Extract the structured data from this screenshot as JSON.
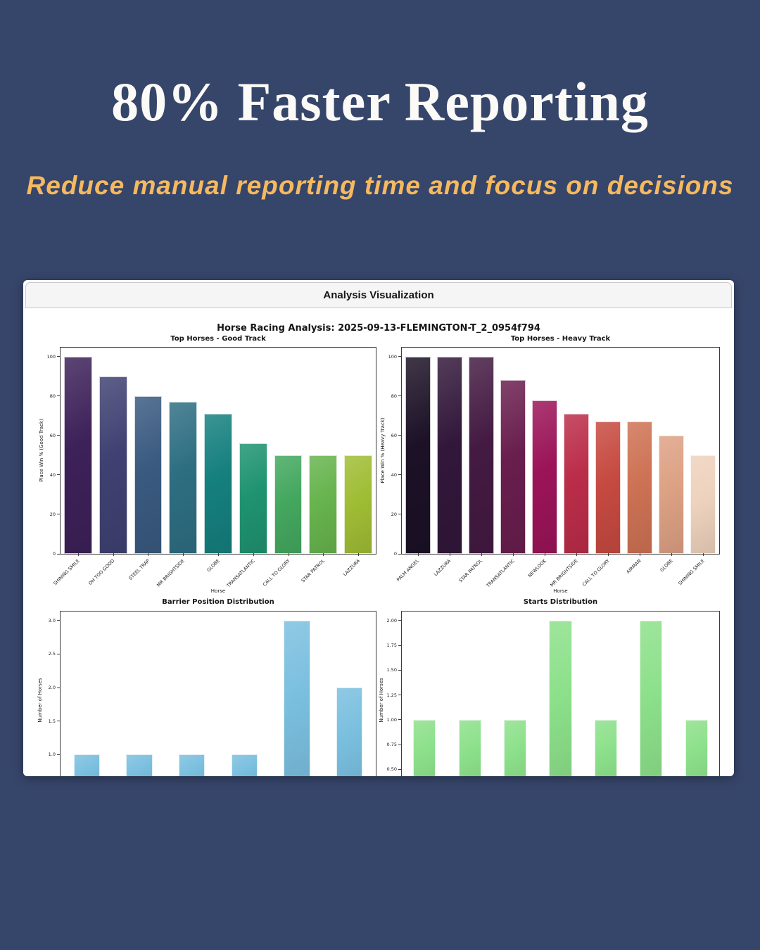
{
  "page": {
    "background_color": "#36456A",
    "heading": "80% Faster Reporting",
    "heading_color": "#FBFAF7",
    "subheading": "Reduce manual reporting time and focus on decisions",
    "subheading_color": "#F5B95F"
  },
  "window": {
    "title": "Analysis Visualization",
    "figure_title": "Horse Racing Analysis: 2025-09-13-FLEMINGTON-T_2_0954f794"
  },
  "chart_data": [
    {
      "id": "top-horses-good-track",
      "type": "bar",
      "title": "Top Horses - Good Track",
      "xlabel": "Horse",
      "ylabel": "Place Win % (Good Track)",
      "categories": [
        "SHINING SMILE",
        "OH TOO GOOD",
        "STEEL TRAP",
        "MR BRIGHTSIDE",
        "GLOBE",
        "TRANSATLANTIC",
        "CALL TO GLORY",
        "STAR PATROL",
        "LAZZURA"
      ],
      "values": [
        100,
        90,
        80,
        77,
        71,
        56,
        50,
        50,
        50
      ],
      "colors": [
        "#3D2159",
        "#3F4172",
        "#3A5A80",
        "#2E6E82",
        "#15807E",
        "#1F9371",
        "#44A85F",
        "#67B44E",
        "#A0BD35"
      ],
      "yticks": [
        "0",
        "20",
        "40",
        "60",
        "80",
        "100"
      ],
      "ylim": [
        0,
        104.6
      ],
      "grid": false,
      "legend": false
    },
    {
      "id": "top-horses-heavy-track",
      "type": "bar",
      "title": "Top Horses - Heavy Track",
      "xlabel": "Horse",
      "ylabel": "Place Win % (Heavy Track)",
      "categories": [
        "PALM ANGEL",
        "LAZZURA",
        "STAR PATROL",
        "TRANSATLANTIC",
        "NEWLOOK",
        "MR BRIGHTSIDE",
        "CALL TO GLORY",
        "AIRMAN",
        "GLOBE",
        "SHINING SMILE"
      ],
      "values": [
        100,
        100,
        100,
        88,
        78,
        71,
        67,
        67,
        60,
        50
      ],
      "colors": [
        "#1C1126",
        "#32173A",
        "#441A42",
        "#691E4E",
        "#9B1458",
        "#BB2D49",
        "#C64A41",
        "#CE7254",
        "#DDA184",
        "#EED2BD"
      ],
      "yticks": [
        "0",
        "20",
        "40",
        "60",
        "80",
        "100"
      ],
      "ylim": [
        0,
        104.6
      ],
      "grid": false,
      "legend": false
    },
    {
      "id": "barrier-position-distribution",
      "type": "bar",
      "title": "Barrier Position Distribution",
      "xlabel": "",
      "ylabel": "Number of Horses",
      "values": [
        1,
        1,
        1,
        1,
        3,
        2
      ],
      "color": "#7ABFDF",
      "yticks": [
        "1.0",
        "1.5",
        "2.0",
        "2.5",
        "3.0"
      ],
      "ylim": [
        0.427,
        3.135
      ],
      "grid": false,
      "legend": false
    },
    {
      "id": "starts-distribution",
      "type": "bar",
      "title": "Starts Distribution",
      "xlabel": "",
      "ylabel": "Number of Horses",
      "values": [
        1,
        1,
        1,
        2,
        1,
        2,
        1
      ],
      "color": "#8CE08A",
      "yticks": [
        "0.50",
        "0.75",
        "1.00",
        "1.25",
        "1.50",
        "1.75",
        "2.00"
      ],
      "ylim": [
        0.2605,
        2.0915
      ],
      "grid": false,
      "legend": false
    }
  ]
}
